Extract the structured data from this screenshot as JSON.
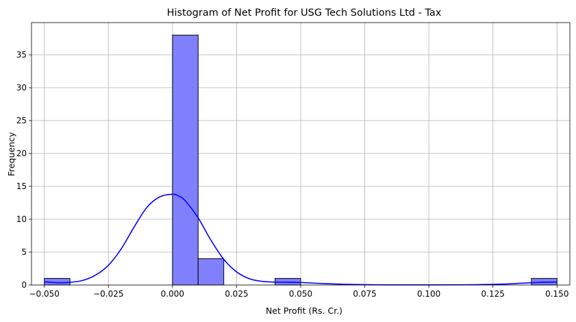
{
  "chart_data": {
    "type": "bar",
    "title": "Histogram of Net Profit for USG Tech Solutions Ltd - Tax",
    "xlabel": "Net Profit (Rs. Cr.)",
    "ylabel": "Frequency",
    "xlim": [
      -0.055,
      0.155
    ],
    "ylim": [
      0,
      39.9
    ],
    "grid": true,
    "bar_color": "#8080ff",
    "bar_edge_color": "#000000",
    "kde_color": "#0000ff",
    "x_ticks": [
      -0.05,
      -0.025,
      0.0,
      0.025,
      0.05,
      0.075,
      0.1,
      0.125,
      0.15
    ],
    "x_tick_labels": [
      "−0.050",
      "−0.025",
      "0.000",
      "0.025",
      "0.050",
      "0.075",
      "0.100",
      "0.125",
      "0.150"
    ],
    "y_ticks": [
      0,
      5,
      10,
      15,
      20,
      25,
      30,
      35
    ],
    "y_tick_labels": [
      "0",
      "5",
      "10",
      "15",
      "20",
      "25",
      "30",
      "35"
    ],
    "bins": [
      {
        "x0": -0.05,
        "x1": -0.04,
        "count": 1
      },
      {
        "x0": -0.04,
        "x1": -0.03,
        "count": 0
      },
      {
        "x0": -0.03,
        "x1": -0.02,
        "count": 0
      },
      {
        "x0": -0.02,
        "x1": -0.01,
        "count": 0
      },
      {
        "x0": -0.01,
        "x1": 0.0,
        "count": 0
      },
      {
        "x0": 0.0,
        "x1": 0.01,
        "count": 38
      },
      {
        "x0": 0.01,
        "x1": 0.02,
        "count": 4
      },
      {
        "x0": 0.02,
        "x1": 0.03,
        "count": 0
      },
      {
        "x0": 0.03,
        "x1": 0.04,
        "count": 0
      },
      {
        "x0": 0.04,
        "x1": 0.05,
        "count": 1
      },
      {
        "x0": 0.05,
        "x1": 0.06,
        "count": 0
      },
      {
        "x0": 0.06,
        "x1": 0.07,
        "count": 0
      },
      {
        "x0": 0.07,
        "x1": 0.08,
        "count": 0
      },
      {
        "x0": 0.08,
        "x1": 0.09,
        "count": 0
      },
      {
        "x0": 0.09,
        "x1": 0.1,
        "count": 0
      },
      {
        "x0": 0.1,
        "x1": 0.11,
        "count": 0
      },
      {
        "x0": 0.11,
        "x1": 0.12,
        "count": 0
      },
      {
        "x0": 0.12,
        "x1": 0.13,
        "count": 0
      },
      {
        "x0": 0.13,
        "x1": 0.14,
        "count": 0
      },
      {
        "x0": 0.14,
        "x1": 0.15,
        "count": 1
      }
    ],
    "kde": {
      "x": [
        -0.05,
        -0.045,
        -0.04,
        -0.035,
        -0.03,
        -0.025,
        -0.02,
        -0.015,
        -0.01,
        -0.005,
        0.0,
        0.0025,
        0.005,
        0.01,
        0.015,
        0.02,
        0.025,
        0.03,
        0.035,
        0.04,
        0.045,
        0.05,
        0.06,
        0.07,
        0.08,
        0.09,
        0.1,
        0.11,
        0.12,
        0.13,
        0.135,
        0.14,
        0.145,
        0.15
      ],
      "y": [
        0.5,
        0.35,
        0.4,
        0.7,
        1.5,
        3.0,
        5.5,
        8.8,
        11.8,
        13.4,
        13.8,
        13.5,
        12.8,
        10.2,
        6.8,
        3.9,
        2.0,
        0.95,
        0.55,
        0.45,
        0.42,
        0.38,
        0.2,
        0.08,
        0.03,
        0.02,
        0.02,
        0.03,
        0.06,
        0.15,
        0.25,
        0.35,
        0.42,
        0.45
      ]
    }
  }
}
